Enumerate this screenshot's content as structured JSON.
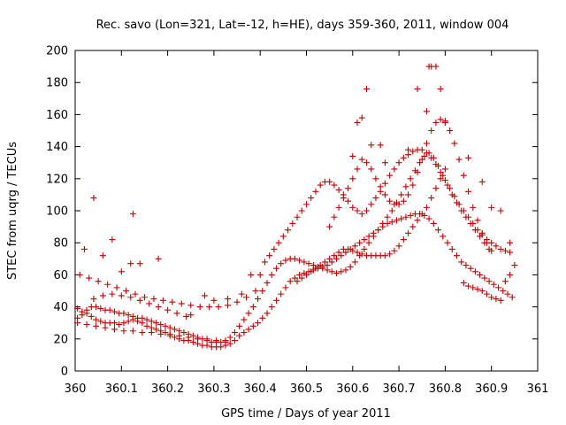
{
  "chart_data": {
    "type": "scatter",
    "title": "Rec. savo (Lon=321, Lat=-12, h=HE), days 359-360, 2011, window 004",
    "xlabel": "GPS time / Days of year 2011",
    "ylabel": "STEC from uqrg / TECUs",
    "xlim": [
      360,
      361
    ],
    "ylim": [
      0,
      200
    ],
    "xticks": [
      360,
      360.1,
      360.2,
      360.3,
      360.4,
      360.5,
      360.6,
      360.7,
      360.8,
      360.9,
      361
    ],
    "xtick_labels": [
      "360",
      "360.1",
      "360.2",
      "360.3",
      "360.4",
      "360.5",
      "360.6",
      "360.7",
      "360.8",
      "360.9",
      "361"
    ],
    "yticks": [
      0,
      20,
      40,
      60,
      80,
      100,
      120,
      140,
      160,
      180,
      200
    ],
    "ytick_labels": [
      "0",
      "20",
      "40",
      "60",
      "80",
      "100",
      "120",
      "140",
      "160",
      "180",
      "200"
    ],
    "grid": false,
    "legend": "none",
    "marker": "plus",
    "color": "#c00000",
    "series": [
      {
        "x": [
          360.005,
          360.015,
          360.025,
          360.035,
          360.045,
          360.055,
          360.065,
          360.075,
          360.085,
          360.095,
          360.105,
          360.115,
          360.125,
          360.135,
          360.145,
          360.155,
          360.165,
          360.175,
          360.185,
          360.195,
          360.205,
          360.215,
          360.225,
          360.235,
          360.245,
          360.255,
          360.265,
          360.275,
          360.285,
          360.295,
          360.305,
          360.315,
          360.325,
          360.335,
          360.345,
          360.355,
          360.365,
          360.375,
          360.385,
          360.395,
          360.405,
          360.415,
          360.425,
          360.435,
          360.445,
          360.455,
          360.465,
          360.475,
          360.485,
          360.495,
          360.505,
          360.515,
          360.525,
          360.535,
          360.545,
          360.555,
          360.565,
          360.575,
          360.585,
          360.595,
          360.605,
          360.615,
          360.625,
          360.635,
          360.645,
          360.655,
          360.665,
          360.675,
          360.685,
          360.695,
          360.705,
          360.715,
          360.725,
          360.735,
          360.745,
          360.755,
          360.765,
          360.775,
          360.785,
          360.795,
          360.805,
          360.815,
          360.825,
          360.835,
          360.845,
          360.855,
          360.865,
          360.875,
          360.885,
          360.895,
          360.905,
          360.915,
          360.925,
          360.935,
          360.945
        ],
        "y": [
          39,
          37,
          36,
          34,
          32,
          31,
          30,
          30,
          30,
          29,
          30,
          31,
          32,
          31,
          30,
          28,
          27,
          26,
          25,
          24,
          23,
          21,
          20,
          19,
          19,
          18,
          17,
          16,
          16,
          15,
          15,
          15,
          16,
          17,
          19,
          22,
          24,
          26,
          28,
          30,
          33,
          36,
          40,
          44,
          48,
          52,
          56,
          58,
          60,
          61,
          62,
          63,
          64,
          65,
          66,
          68,
          70,
          72,
          74,
          76,
          78,
          80,
          82,
          84,
          86,
          88,
          90,
          92,
          93,
          94,
          95,
          96,
          97,
          98,
          98,
          97,
          95,
          92,
          88,
          84,
          80,
          76,
          72,
          68,
          66,
          64,
          62,
          60,
          58,
          56,
          54,
          52,
          50,
          48,
          46
        ]
      },
      {
        "x": [
          360.005,
          360.015,
          360.025,
          360.035,
          360.045,
          360.055,
          360.065,
          360.075,
          360.085,
          360.095,
          360.105,
          360.115,
          360.125,
          360.135,
          360.145,
          360.155,
          360.165,
          360.175,
          360.185,
          360.195,
          360.205,
          360.215,
          360.225,
          360.235,
          360.245,
          360.255,
          360.265,
          360.275,
          360.285,
          360.295,
          360.305,
          360.315,
          360.325,
          360.335,
          360.345,
          360.355,
          360.365,
          360.375,
          360.385,
          360.395,
          360.405,
          360.415,
          360.425,
          360.435,
          360.445,
          360.455,
          360.465,
          360.475,
          360.485,
          360.495,
          360.505,
          360.515,
          360.525,
          360.535,
          360.545,
          360.555,
          360.565,
          360.575,
          360.585,
          360.595,
          360.605,
          360.615,
          360.625,
          360.635,
          360.645,
          360.655,
          360.665,
          360.675,
          360.685,
          360.695,
          360.705,
          360.715,
          360.725,
          360.735,
          360.745,
          360.755,
          360.765,
          360.775,
          360.785,
          360.795,
          360.805,
          360.815,
          360.825,
          360.835,
          360.845,
          360.855,
          360.865,
          360.875,
          360.885,
          360.895
        ],
        "y": [
          33,
          35,
          38,
          40,
          40,
          39,
          38,
          38,
          37,
          36,
          36,
          35,
          34,
          33,
          33,
          32,
          31,
          30,
          29,
          28,
          27,
          26,
          25,
          24,
          23,
          22,
          21,
          20,
          19,
          18,
          18,
          18,
          19,
          21,
          24,
          28,
          32,
          36,
          40,
          45,
          50,
          55,
          60,
          64,
          67,
          69,
          70,
          70,
          69,
          68,
          67,
          66,
          65,
          64,
          63,
          62,
          61,
          62,
          63,
          65,
          68,
          72,
          76,
          80,
          84,
          88,
          92,
          96,
          100,
          105,
          110,
          115,
          120,
          125,
          130,
          134,
          136,
          133,
          128,
          122,
          116,
          110,
          105,
          100,
          96,
          92,
          88,
          84,
          80,
          76
        ]
      },
      {
        "x": [
          360.41,
          360.42,
          360.43,
          360.44,
          360.45,
          360.46,
          360.47,
          360.48,
          360.49,
          360.5,
          360.51,
          360.52,
          360.53,
          360.54,
          360.55,
          360.56,
          360.57,
          360.58,
          360.59,
          360.6,
          360.61,
          360.62,
          360.63,
          360.64,
          360.65,
          360.66,
          360.67,
          360.68,
          360.69,
          360.7,
          360.71,
          360.72,
          360.73,
          360.74,
          360.75,
          360.76,
          360.77,
          360.78,
          360.79,
          360.8,
          360.81,
          360.82,
          360.83,
          360.84,
          360.85,
          360.86,
          360.87,
          360.88,
          360.89,
          360.9,
          360.91,
          360.92,
          360.93,
          360.94
        ],
        "y": [
          68,
          72,
          76,
          80,
          84,
          88,
          92,
          96,
          100,
          104,
          108,
          112,
          116,
          118,
          118,
          116,
          113,
          110,
          106,
          102,
          100,
          98,
          100,
          104,
          108,
          112,
          117,
          122,
          126,
          130,
          133,
          135,
          137,
          138,
          138,
          136,
          133,
          129,
          124,
          119,
          114,
          109,
          104,
          100,
          96,
          92,
          88,
          85,
          82,
          80,
          78,
          76,
          75,
          74
        ]
      },
      {
        "x": [
          360.55,
          360.56,
          360.57,
          360.58,
          360.59,
          360.6,
          360.61,
          360.62,
          360.63,
          360.64,
          360.65,
          360.66,
          360.67,
          360.68,
          360.69,
          360.7,
          360.71,
          360.72,
          360.73,
          360.74,
          360.75,
          360.76,
          360.77,
          360.78,
          360.79,
          360.8,
          360.81,
          360.82,
          360.83,
          360.84,
          360.85,
          360.86,
          360.87,
          360.88,
          360.89,
          360.9
        ],
        "y": [
          90,
          96,
          102,
          108,
          114,
          120,
          126,
          132,
          130,
          126,
          120,
          115,
          110,
          106,
          104,
          104,
          106,
          110,
          116,
          124,
          132,
          142,
          150,
          155,
          157,
          156,
          150,
          142,
          132,
          122,
          112,
          102,
          94,
          86,
          80,
          75
        ]
      },
      {
        "x": [
          360.01,
          360.03,
          360.05,
          360.07,
          360.09,
          360.11,
          360.13,
          360.15,
          360.17,
          360.19,
          360.21,
          360.23,
          360.25,
          360.27,
          360.29,
          360.31,
          360.33,
          360.35,
          360.37,
          360.39
        ],
        "y": [
          60,
          58,
          56,
          54,
          52,
          50,
          48,
          46,
          45,
          44,
          43,
          42,
          41,
          40,
          40,
          40,
          41,
          43,
          46,
          50
        ]
      },
      {
        "x": [
          360.005,
          360.025,
          360.045,
          360.065,
          360.085,
          360.105,
          360.125,
          360.145,
          360.165,
          360.185,
          360.205,
          360.225,
          360.245,
          360.265,
          360.285,
          360.305,
          360.325
        ],
        "y": [
          30,
          29,
          28,
          27,
          26,
          25,
          25,
          24,
          24,
          23,
          22,
          22,
          21,
          20,
          20,
          19,
          18
        ]
      },
      {
        "x": [
          360.04,
          360.06,
          360.08,
          360.1,
          360.12,
          360.14,
          360.16,
          360.18,
          360.2,
          360.22,
          360.24
        ],
        "y": [
          45,
          47,
          48,
          47,
          46,
          44,
          42,
          40,
          38,
          36,
          34
        ]
      },
      {
        "x": [
          360.02,
          360.04,
          360.06,
          360.08,
          360.1,
          360.12,
          360.125,
          360.14,
          360.18,
          360.25,
          360.28,
          360.3,
          360.33,
          360.36,
          360.38,
          360.4
        ],
        "y": [
          76,
          108,
          72,
          82,
          62,
          67,
          98,
          67,
          70,
          35,
          47,
          44,
          45,
          48,
          60,
          60
        ]
      },
      {
        "x": [
          360.6,
          360.61,
          360.62,
          360.63,
          360.64,
          360.66,
          360.67,
          360.72,
          360.74,
          360.76,
          360.765,
          360.77,
          360.78,
          360.79,
          360.8,
          360.85,
          360.88,
          360.9,
          360.92,
          360.94
        ],
        "y": [
          134,
          155,
          158,
          176,
          141,
          141,
          130,
          138,
          176,
          162,
          190,
          190,
          190,
          176,
          155,
          133,
          118,
          102,
          100,
          80
        ]
      },
      {
        "x": [
          360.84,
          360.85,
          360.86,
          360.87,
          360.88,
          360.89,
          360.9,
          360.91,
          360.92,
          360.93,
          360.94,
          360.95
        ],
        "y": [
          55,
          53,
          52,
          51,
          50,
          48,
          46,
          45,
          44,
          56,
          60,
          66
        ]
      },
      {
        "x": [
          360.48,
          360.49,
          360.5,
          360.51,
          360.52,
          360.53,
          360.54,
          360.55,
          360.56,
          360.57,
          360.58,
          360.59,
          360.6,
          360.61,
          360.62,
          360.63,
          360.64,
          360.65,
          360.66,
          360.67,
          360.68,
          360.69,
          360.7,
          360.71,
          360.72,
          360.73,
          360.74,
          360.75,
          360.76,
          360.77,
          360.78,
          360.79,
          360.8
        ],
        "y": [
          56,
          58,
          60,
          62,
          64,
          66,
          68,
          70,
          72,
          74,
          76,
          76,
          75,
          74,
          73,
          72,
          72,
          72,
          72,
          72,
          73,
          75,
          78,
          82,
          86,
          90,
          94,
          98,
          102,
          108,
          114,
          120,
          126
        ]
      }
    ]
  }
}
